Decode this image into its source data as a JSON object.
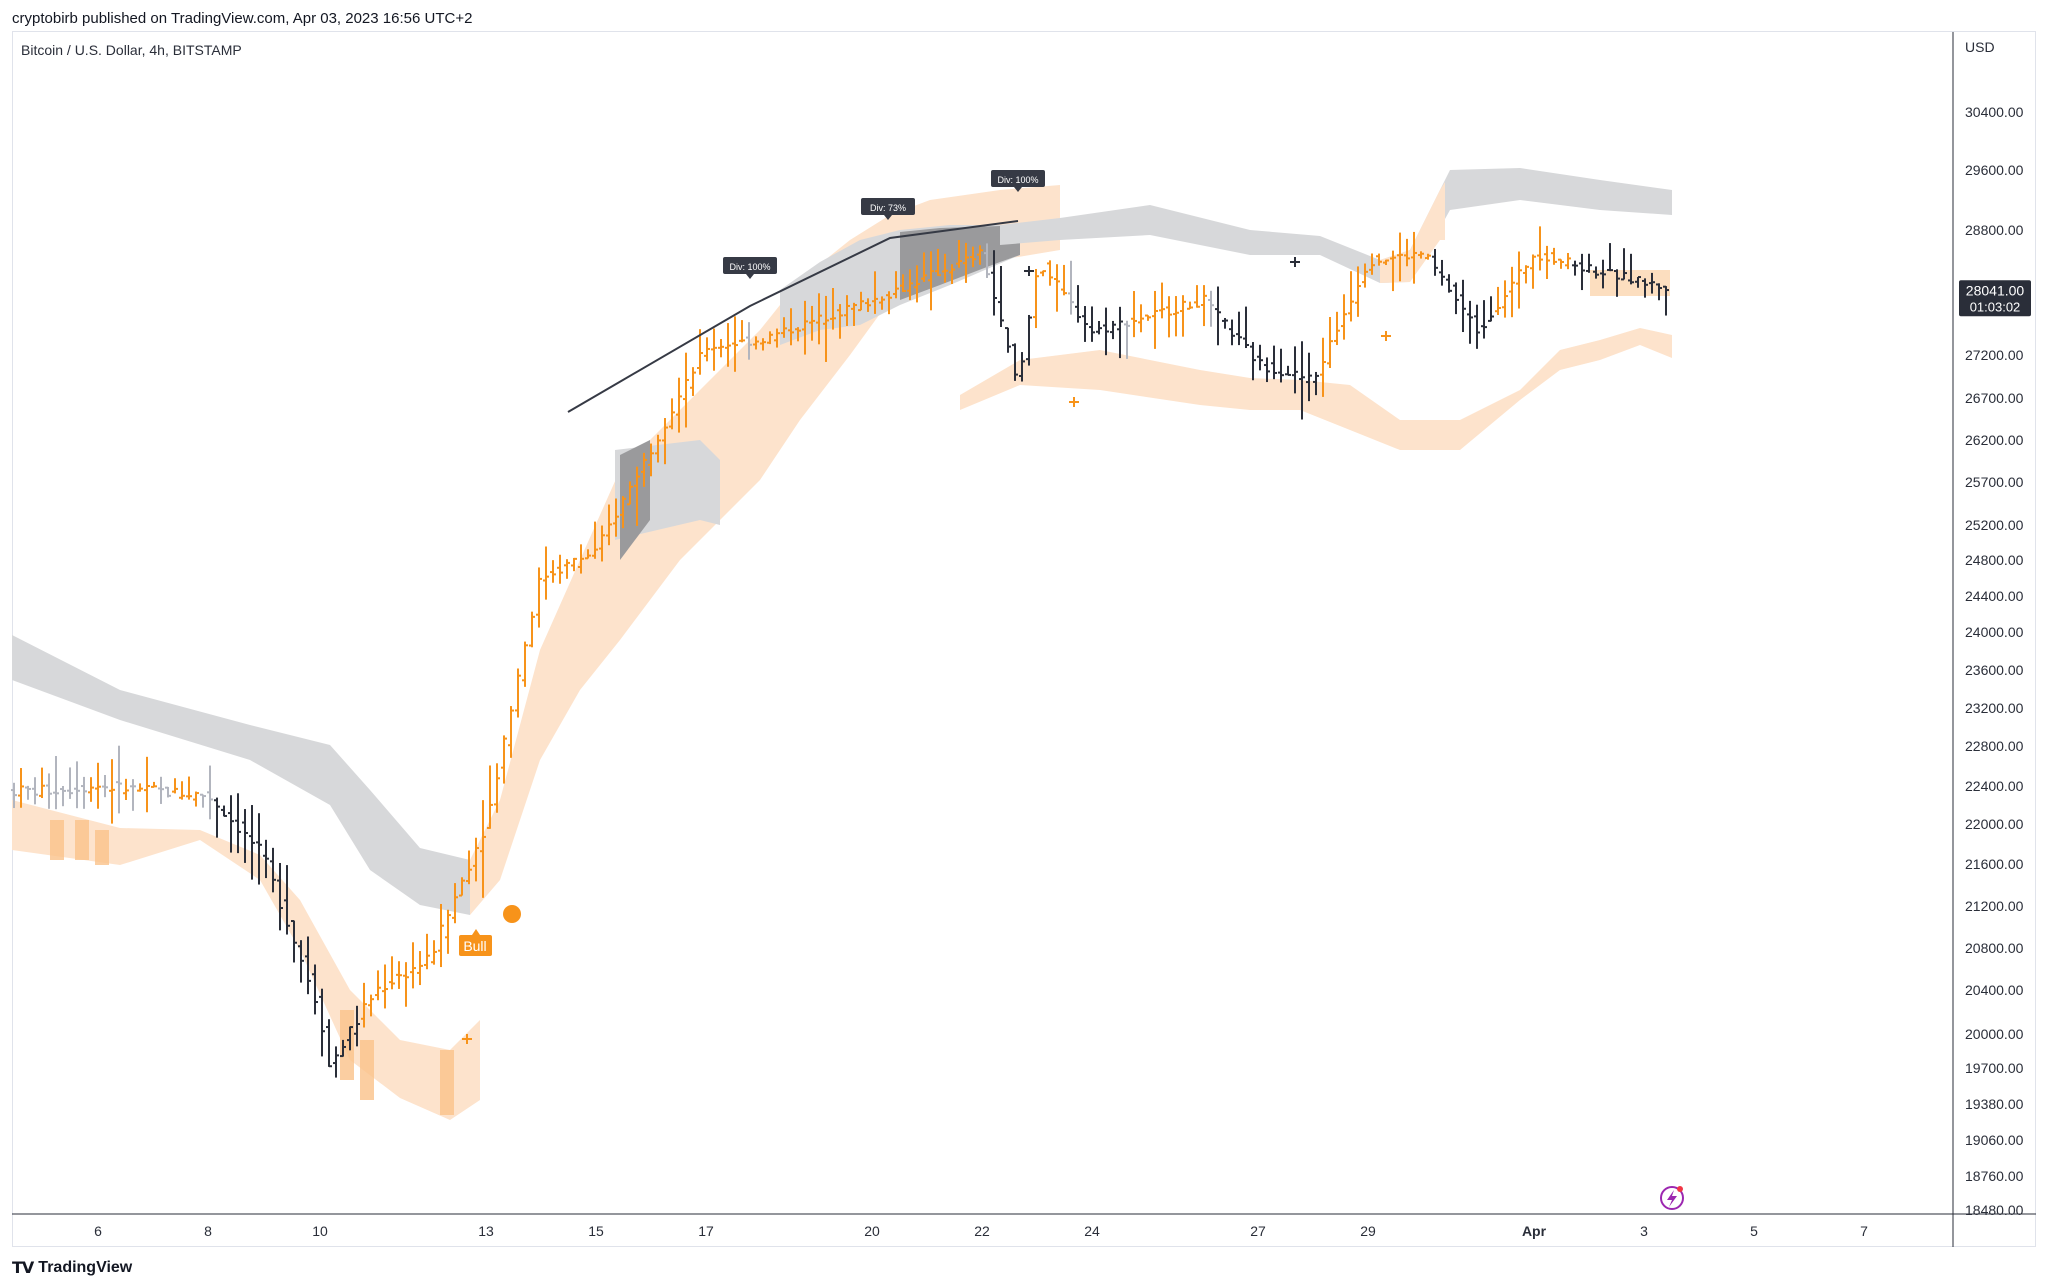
{
  "header": {
    "published": "cryptobirb published on TradingView.com, Apr 03, 2023 16:56 UTC+2"
  },
  "symbol": {
    "title": "Bitcoin / U.S. Dollar, 4h, BITSTAMP"
  },
  "footer": {
    "brand": "TradingView"
  },
  "colors": {
    "up": "#f7931a",
    "down": "#2a2e39",
    "neutral": "#b2b5be",
    "band_orange": "#fde3cc",
    "band_grey": "#d7d8da",
    "band_orange_dark": "#fac28a",
    "band_grey_dark": "#9a9a9c",
    "label_bg": "#363a45"
  },
  "chart_data": {
    "type": "ohlc-bar",
    "currency": "USD",
    "price_label": "28041.00",
    "countdown": "01:03:02",
    "y_ticks": [
      "30400.00",
      "29600.00",
      "28800.00",
      "27200.00",
      "26700.00",
      "26200.00",
      "25700.00",
      "25200.00",
      "24800.00",
      "24400.00",
      "24000.00",
      "23600.00",
      "23200.00",
      "22800.00",
      "22400.00",
      "22000.00",
      "21600.00",
      "21200.00",
      "20800.00",
      "20400.00",
      "20000.00",
      "19700.00",
      "19380.00",
      "19060.00",
      "18760.00",
      "18480.00"
    ],
    "x_ticks": [
      "6",
      "8",
      "10",
      "13",
      "15",
      "17",
      "20",
      "22",
      "24",
      "27",
      "29",
      "Apr",
      "3",
      "5",
      "7"
    ],
    "annotations": {
      "divergence": [
        "Div: 100%",
        "Div: 73%",
        "Div: 100%"
      ],
      "signal": "Bull"
    },
    "price_path": [
      [
        "Mar 5",
        22350
      ],
      [
        "Mar 6",
        22400
      ],
      [
        "Mar 8",
        22300
      ],
      [
        "Mar 9",
        21700
      ],
      [
        "Mar 10",
        20200
      ],
      [
        "Mar 10",
        19700
      ],
      [
        "Mar 11",
        20400
      ],
      [
        "Mar 12",
        20700
      ],
      [
        "Mar 13",
        22000
      ],
      [
        "Mar 14",
        24600
      ],
      [
        "Mar 15",
        24900
      ],
      [
        "Mar 17",
        27300
      ],
      [
        "Mar 18",
        27400
      ],
      [
        "Mar 20",
        27900
      ],
      [
        "Mar 22",
        28500
      ],
      [
        "Mar 22",
        26800
      ],
      [
        "Mar 23",
        28400
      ],
      [
        "Mar 24",
        27500
      ],
      [
        "Mar 26",
        27900
      ],
      [
        "Mar 27",
        27100
      ],
      [
        "Mar 28",
        26900
      ],
      [
        "Mar 29",
        28400
      ],
      [
        "Mar 30",
        28500
      ],
      [
        "Mar 31",
        27500
      ],
      [
        "Apr 1",
        28500
      ],
      [
        "Apr 2",
        28300
      ],
      [
        "Apr 3",
        28041
      ]
    ]
  }
}
